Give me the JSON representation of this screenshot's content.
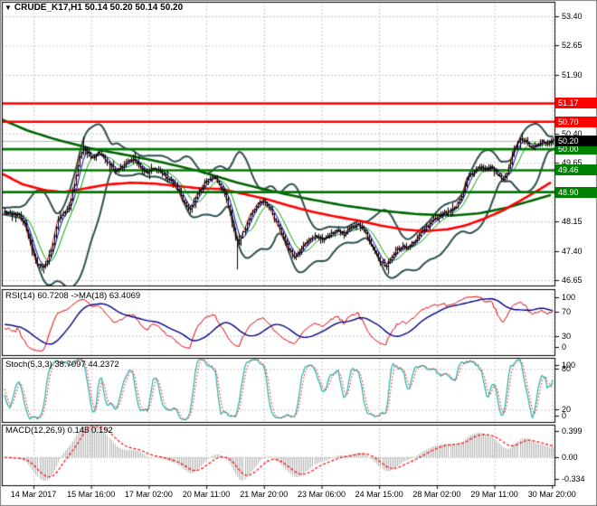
{
  "header": {
    "dropdown_icon": "▼",
    "symbol": "CRUDE_K17,H1",
    "ohlc": "50.14 50.20 50.14 50.20"
  },
  "colors": {
    "bg": "#ffffff",
    "grid": "#c9c9c9",
    "bar": "#000000",
    "bollinger": "#2F4F4F",
    "ma_slow_red": "#ff0000",
    "ma_long_green": "#006400",
    "ma_fast_blue": "#0000cd",
    "ma_fast_green": "#00a000",
    "close_line": "#e60000",
    "bid_line": "#b3b3b3",
    "level_red": "#ff0000",
    "level_green": "#007a00",
    "badge_red": "#ff0000",
    "badge_green": "#008000",
    "badge_black": "#000000",
    "rsi_line": "#dd0000",
    "rsi_ma": "#000080",
    "stoch_main": "#20b2aa",
    "stoch_signal": "#ff0000",
    "macd_hist": "#b4b4b4",
    "macd_signal": "#ff0000",
    "panel_border": "#000000",
    "window_border": "#7f7f7f",
    "text": "#000000"
  },
  "chart_data": {
    "type": "ohlc-bar",
    "symbol": "CRUDE_K17",
    "timeframe": "H1",
    "current": {
      "open": 50.14,
      "high": 50.2,
      "low": 50.14,
      "close": 50.2,
      "bid": 50.2
    },
    "price_axis": {
      "min": 46.65,
      "max": 53.4,
      "grid_step": 0.75,
      "plain_ticks": [
        "53.40",
        "52.65",
        "51.90",
        "50.40",
        "49.65",
        "48.15",
        "47.40",
        "46.65"
      ]
    },
    "levels": [
      {
        "price": 51.17,
        "label": "51.17",
        "color": "red"
      },
      {
        "price": 50.7,
        "label": "50.70",
        "color": "red"
      },
      {
        "price": 50.0,
        "label": "50.00",
        "color": "green"
      },
      {
        "price": 49.46,
        "label": "49.46",
        "color": "green"
      },
      {
        "price": 48.9,
        "label": "48.90",
        "color": "green"
      }
    ],
    "bid_badge": {
      "label": "50.20",
      "price": 50.2
    },
    "time_labels": [
      "14 Mar 2017",
      "15 Mar 16:00",
      "17 Mar 02:00",
      "20 Mar 11:00",
      "21 Mar 20:00",
      "23 Mar 06:00",
      "24 Mar 15:00",
      "28 Mar 02:00",
      "29 Mar 11:00",
      "30 Mar 20:00"
    ],
    "bars": 300,
    "close_path": [
      [
        0,
        48.4
      ],
      [
        10,
        48.36
      ],
      [
        20,
        48.32
      ],
      [
        27,
        48.1
      ],
      [
        33,
        47.6
      ],
      [
        39,
        47.15
      ],
      [
        45,
        46.98
      ],
      [
        51,
        47.08
      ],
      [
        57,
        47.5
      ],
      [
        63,
        48.15
      ],
      [
        70,
        48.35
      ],
      [
        76,
        48.55
      ],
      [
        82,
        49.1
      ],
      [
        88,
        49.8
      ],
      [
        93,
        50.05
      ],
      [
        98,
        49.88
      ],
      [
        103,
        49.75
      ],
      [
        108,
        49.9
      ],
      [
        114,
        49.8
      ],
      [
        120,
        49.6
      ],
      [
        127,
        49.45
      ],
      [
        134,
        49.55
      ],
      [
        141,
        49.7
      ],
      [
        148,
        49.72
      ],
      [
        155,
        49.55
      ],
      [
        162,
        49.4
      ],
      [
        169,
        49.52
      ],
      [
        176,
        49.45
      ],
      [
        183,
        49.3
      ],
      [
        190,
        49.18
      ],
      [
        197,
        48.95
      ],
      [
        203,
        48.62
      ],
      [
        209,
        48.45
      ],
      [
        216,
        48.8
      ],
      [
        223,
        49.05
      ],
      [
        230,
        49.22
      ],
      [
        237,
        49.28
      ],
      [
        243,
        49.1
      ],
      [
        249,
        48.8
      ],
      [
        255,
        48.3
      ],
      [
        260,
        47.75
      ],
      [
        264,
        47.58
      ],
      [
        270,
        47.95
      ],
      [
        277,
        48.35
      ],
      [
        284,
        48.6
      ],
      [
        291,
        48.68
      ],
      [
        298,
        48.48
      ],
      [
        305,
        48.12
      ],
      [
        312,
        47.8
      ],
      [
        319,
        47.45
      ],
      [
        326,
        47.22
      ],
      [
        333,
        47.45
      ],
      [
        340,
        47.65
      ],
      [
        348,
        47.8
      ],
      [
        356,
        47.7
      ],
      [
        364,
        47.82
      ],
      [
        372,
        47.95
      ],
      [
        380,
        47.82
      ],
      [
        388,
        48.0
      ],
      [
        395,
        48.08
      ],
      [
        402,
        47.92
      ],
      [
        408,
        47.65
      ],
      [
        414,
        47.38
      ],
      [
        420,
        47.12
      ],
      [
        426,
        47.02
      ],
      [
        432,
        47.18
      ],
      [
        438,
        47.42
      ],
      [
        444,
        47.52
      ],
      [
        450,
        47.45
      ],
      [
        457,
        47.62
      ],
      [
        464,
        47.82
      ],
      [
        472,
        48.02
      ],
      [
        480,
        48.18
      ],
      [
        488,
        48.32
      ],
      [
        496,
        48.4
      ],
      [
        503,
        48.5
      ],
      [
        510,
        48.8
      ],
      [
        516,
        49.25
      ],
      [
        523,
        49.42
      ],
      [
        530,
        49.55
      ],
      [
        537,
        49.48
      ],
      [
        544,
        49.55
      ],
      [
        551,
        49.32
      ],
      [
        557,
        49.22
      ],
      [
        563,
        49.55
      ],
      [
        569,
        50.05
      ],
      [
        575,
        50.28
      ],
      [
        581,
        50.18
      ],
      [
        587,
        50.02
      ],
      [
        593,
        50.1
      ],
      [
        599,
        50.22
      ],
      [
        605,
        50.14
      ],
      [
        611,
        50.2
      ]
    ],
    "spikes": {
      "lows": [
        [
          46,
          46.88
        ],
        [
          262,
          46.92
        ],
        [
          428,
          46.8
        ]
      ],
      "highs": [
        [
          93,
          50.32
        ],
        [
          576,
          50.43
        ]
      ]
    },
    "ma_red": [
      [
        0,
        49.4
      ],
      [
        25,
        49.1
      ],
      [
        50,
        48.95
      ],
      [
        70,
        48.9
      ],
      [
        95,
        49.0
      ],
      [
        120,
        49.1
      ],
      [
        145,
        49.14
      ],
      [
        170,
        49.12
      ],
      [
        195,
        49.06
      ],
      [
        220,
        49.0
      ],
      [
        245,
        48.98
      ],
      [
        270,
        48.85
      ],
      [
        295,
        48.72
      ],
      [
        320,
        48.55
      ],
      [
        345,
        48.4
      ],
      [
        370,
        48.28
      ],
      [
        395,
        48.18
      ],
      [
        420,
        48.05
      ],
      [
        445,
        47.95
      ],
      [
        470,
        47.9
      ],
      [
        495,
        47.95
      ],
      [
        515,
        48.05
      ],
      [
        535,
        48.22
      ],
      [
        555,
        48.42
      ],
      [
        575,
        48.68
      ],
      [
        595,
        48.95
      ],
      [
        611,
        49.18
      ]
    ],
    "ma_green": [
      [
        0,
        50.78
      ],
      [
        30,
        50.48
      ],
      [
        60,
        50.26
      ],
      [
        100,
        50.02
      ],
      [
        140,
        49.85
      ],
      [
        180,
        49.66
      ],
      [
        220,
        49.44
      ],
      [
        260,
        49.16
      ],
      [
        300,
        48.93
      ],
      [
        340,
        48.73
      ],
      [
        380,
        48.56
      ],
      [
        420,
        48.43
      ],
      [
        460,
        48.34
      ],
      [
        500,
        48.3
      ],
      [
        530,
        48.36
      ],
      [
        560,
        48.5
      ],
      [
        590,
        48.7
      ],
      [
        611,
        48.84
      ]
    ],
    "indicators": {
      "rsi": {
        "label": "RSI(14) 60.7208 ->MA(18) 63.4069",
        "period": 14,
        "ma_period": 18,
        "value": 60.7208,
        "ma_value": 63.4069,
        "ticks": [
          "100",
          "70",
          "30",
          "0"
        ],
        "tick_values": [
          100,
          70,
          30,
          0
        ],
        "levels": [
          70,
          30
        ]
      },
      "stoch": {
        "label": "Stoch(5,3,3) 38.7097 44.2372",
        "k": 5,
        "d": 3,
        "slowing": 3,
        "main": 38.7097,
        "signal": 44.2372,
        "ticks": [
          "100",
          "80",
          "20",
          "0"
        ],
        "tick_values": [
          100,
          80,
          20,
          0
        ],
        "levels": [
          80,
          20
        ]
      },
      "macd": {
        "label": "MACD(12,26,9) 0.145 0.192",
        "fast": 12,
        "slow": 26,
        "signal_period": 9,
        "value": 0.145,
        "signal": 0.192,
        "ticks": [
          "0.399",
          "0.00",
          "-0.334"
        ],
        "tick_values": [
          0.399,
          0.0,
          -0.334
        ]
      }
    }
  }
}
